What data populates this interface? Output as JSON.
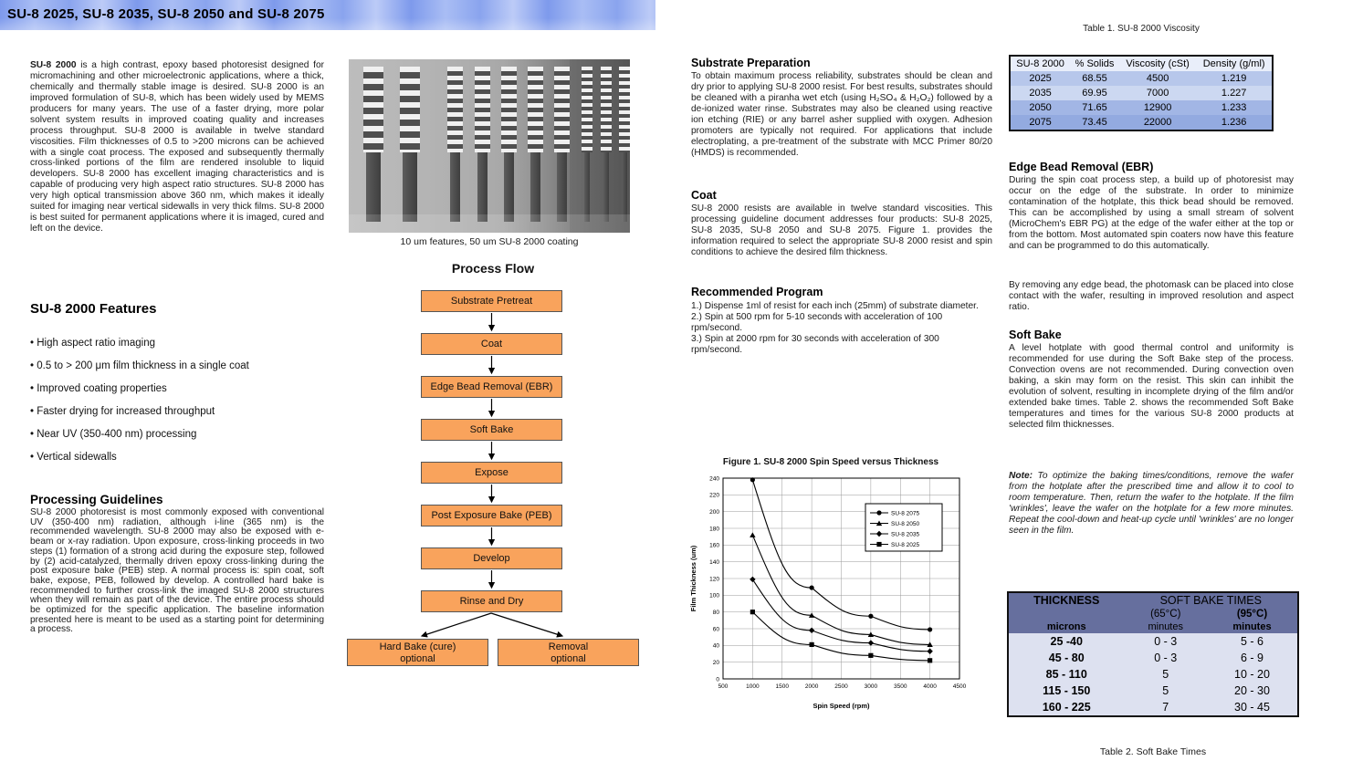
{
  "page": {
    "title": "SU-8 2025, SU-8 2035, SU-8 2050 and SU-8 2075"
  },
  "left": {
    "intro_lead": "SU-8 2000",
    "intro_rest": " is a high contrast, epoxy based photoresist designed for micromachining and other microelectronic applications, where a thick, chemically and thermally stable image is desired.  SU-8 2000 is an improved formulation of SU-8, which has been widely used by MEMS producers for many years. The use of a faster drying, more polar solvent system results in improved coating quality and increases process throughput. SU-8 2000 is available in twelve standard viscosities. Film thicknesses of 0.5 to >200 microns can be achieved with a single coat process. The exposed and subsequently thermally cross-linked portions of the film are rendered insoluble to liquid developers. SU-8 2000 has excellent imaging characteristics and is capable of producing very high aspect ratio structures.  SU-8 2000 has very high optical transmission above 360 nm, which makes it ideally suited for imaging near vertical sidewalls in very thick films. SU-8 2000 is best suited for permanent applications where it is imaged, cured and left on the device.",
    "features_title": "SU-8 2000 Features",
    "features": [
      "High aspect ratio imaging",
      "0.5 to > 200 μm film thickness in a single coat",
      "Improved coating properties",
      "Faster drying for increased throughput",
      "Near UV (350-400 nm) processing",
      "Vertical sidewalls"
    ],
    "guidelines_title": "Processing Guidelines",
    "guidelines_body": "SU-8 2000 photoresist is most commonly exposed with conventional UV (350-400 nm) radiation, although i-line (365 nm) is the recommended wavelength.  SU-8 2000 may also be exposed with e-beam or x-ray radiation.   Upon exposure, cross-linking proceeds in two steps (1) formation of a strong acid during the exposure step, followed by (2) acid-catalyzed, thermally driven epoxy cross-linking during the post exposure bake (PEB) step.  A normal process is:  spin coat, soft bake, expose, PEB, followed by develop.  A controlled hard bake is recommended to further cross-link the imaged SU-8 2000 structures when they will remain as part of the device. The entire process should be optimized for the specific application. The baseline information presented here is meant to be used as a starting point for determining a process."
  },
  "middle": {
    "image_caption": "10 um features, 50 um SU-8 2000 coating",
    "flow_title": "Process Flow",
    "flow_steps": [
      "Substrate Pretreat",
      "Coat",
      "Edge Bead Removal (EBR)",
      "Soft Bake",
      "Expose",
      "Post Exposure Bake (PEB)",
      "Develop",
      "Rinse and Dry"
    ],
    "flow_optional": [
      {
        "line1": "Hard Bake (cure)",
        "line2": "optional"
      },
      {
        "line1": "Removal",
        "line2": "optional"
      }
    ]
  },
  "col3": {
    "substrate_title": "Substrate Preparation",
    "substrate_body": "To obtain maximum process reliability, substrates should be clean and dry prior to applying SU-8 2000 resist. For best results, substrates should be cleaned with a piranha wet etch (using H₂SO₄ & H₂O₂) followed by a de-ionized water rinse. Substrates may also be cleaned using reactive ion etching (RIE) or any barrel asher supplied with oxygen.  Adhesion promoters are typically not required. For applications that include electroplating, a pre-treatment of the substrate with MCC Primer 80/20 (HMDS) is recommended.",
    "coat_title": "Coat",
    "coat_body": "SU-8 2000 resists are available in twelve standard viscosities. This processing guideline document addresses four products: SU-8 2025, SU-8 2035, SU-8 2050 and SU-8 2075. Figure 1. provides the information required to select the appropriate SU-8 2000 resist and spin conditions to achieve the desired film thickness.",
    "program_title": "Recommended Program",
    "program_items": [
      "1.) Dispense 1ml of resist for each inch (25mm) of substrate diameter.",
      "2.) Spin at 500 rpm for 5-10 seconds with acceleration of 100 rpm/second.",
      "3.) Spin at 2000 rpm for 30 seconds with acceleration of 300 rpm/second."
    ]
  },
  "chart_data": {
    "type": "line",
    "title": "Figure 1. SU-8 2000 Spin Speed versus Thickness",
    "xlabel": "Spin Speed (rpm)",
    "ylabel": "Film Thickness (um)",
    "x_range": [
      500,
      4500
    ],
    "x_step": 500,
    "y_range": [
      0,
      240
    ],
    "y_step": 20,
    "grid": true,
    "legend_position": "upper-right",
    "x": [
      1000,
      2000,
      3000,
      4000
    ],
    "series": [
      {
        "name": "SU-8 2075",
        "marker": "circle",
        "values": [
          238,
          109,
          75,
          59
        ]
      },
      {
        "name": "SU-8 2050",
        "marker": "triangle",
        "values": [
          172,
          76,
          53,
          41
        ]
      },
      {
        "name": "SU-8 2035",
        "marker": "diamond",
        "values": [
          119,
          58,
          43,
          33
        ]
      },
      {
        "name": "SU-8 2025",
        "marker": "square",
        "values": [
          80,
          41,
          28,
          22
        ]
      }
    ],
    "line_color": "#000000"
  },
  "col4": {
    "table1_caption": "Table 1. SU-8 2000 Viscosity",
    "table1": {
      "headers": [
        "SU-8 2000",
        "% Solids",
        "Viscosity (cSt)",
        "Density (g/ml)"
      ],
      "rows": [
        [
          "2025",
          "68.55",
          "4500",
          "1.219"
        ],
        [
          "2035",
          "69.95",
          "7000",
          "1.227"
        ],
        [
          "2050",
          "71.65",
          "12900",
          "1.233"
        ],
        [
          "2075",
          "73.45",
          "22000",
          "1.236"
        ]
      ],
      "header_color": "#e9eefa",
      "row_colors": [
        "#b7c7eb",
        "#ccd8f1",
        "#a2b6e5",
        "#93aae0"
      ]
    },
    "ebr_title": "Edge Bead Removal (EBR)",
    "ebr_body1": "During the spin coat process step, a build up of photoresist may occur on the edge of the substrate. In order to minimize contamination of the hotplate, this thick bead should be removed. This can be accomplished by using a small stream of solvent (MicroChem's EBR PG) at the edge of the wafer either at the top or from the bottom.  Most automated spin coaters now have this feature and can be programmed to do this automatically.",
    "ebr_body2": "By removing any edge bead, the photomask can be placed into close contact with the wafer, resulting in improved resolution and aspect ratio.",
    "softbake_title": "Soft Bake",
    "softbake_body": "A level hotplate with good thermal control and uniformity is recommended for use during the Soft Bake step of the process. Convection ovens are not recommended. During convection oven baking, a skin may form on the resist. This skin can inhibit the evolution of solvent, resulting in incomplete drying of the film and/or extended bake times. Table 2. shows the recommended Soft Bake temperatures and times for the various SU-8 2000 products at selected film thicknesses.",
    "note_label": "Note:",
    "note_body": " To optimize the baking times/conditions, remove the wafer from the hotplate after the prescribed time and allow it to cool to room temperature. Then, return the wafer to the hotplate. If the film 'wrinkles', leave the wafer on the hotplate for a few more minutes.  Repeat the cool-down and heat-up cycle until 'wrinkles' are no longer seen in the film.",
    "table2_caption": "Table 2. Soft Bake Times",
    "table2": {
      "col1_header": "THICKNESS",
      "col23_header": "SOFT BAKE TIMES",
      "temps": [
        "(65°C)",
        "(95°C)"
      ],
      "units": [
        "microns",
        "minutes",
        "minutes"
      ],
      "rows": [
        [
          "25 -40",
          "0 - 3",
          "5 - 6"
        ],
        [
          "45 - 80",
          "0 - 3",
          "6 - 9"
        ],
        [
          "85 - 110",
          "5",
          "10 - 20"
        ],
        [
          "115 - 150",
          "5",
          "20 - 30"
        ],
        [
          "160 - 225",
          "7",
          "30 - 45"
        ]
      ]
    }
  }
}
